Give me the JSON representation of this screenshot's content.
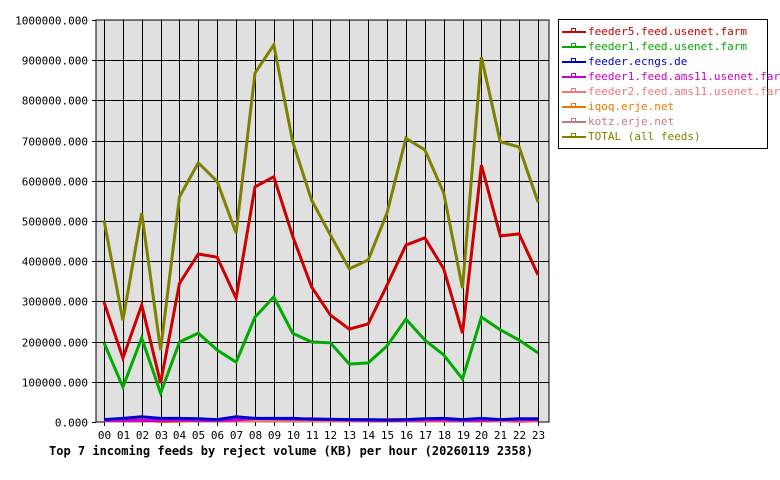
{
  "chart_data": {
    "type": "line",
    "title": "Top 7 incoming feeds by reject volume (KB) per hour (20260119 2358)",
    "xlabel": "",
    "ylabel": "",
    "ylim": [
      0,
      1000000
    ],
    "yticks": [
      "0.000",
      "100000.000",
      "200000.000",
      "300000.000",
      "400000.000",
      "500000.000",
      "600000.000",
      "700000.000",
      "800000.000",
      "900000.000",
      "1000000.000"
    ],
    "grid": true,
    "legend_position": "right",
    "categories": [
      "00",
      "01",
      "02",
      "03",
      "04",
      "05",
      "06",
      "07",
      "08",
      "09",
      "10",
      "11",
      "12",
      "13",
      "14",
      "15",
      "16",
      "17",
      "18",
      "19",
      "20",
      "21",
      "22",
      "23"
    ],
    "series": [
      {
        "name": "feeder5.feed.usenet.farm",
        "color": "#cc0000",
        "values": [
          298000,
          159000,
          291000,
          97000,
          345000,
          418000,
          410000,
          308000,
          585000,
          610000,
          462000,
          336000,
          266000,
          231000,
          244000,
          340000,
          440000,
          458000,
          381000,
          221000,
          639000,
          463000,
          468000,
          366000
        ]
      },
      {
        "name": "feeder1.feed.usenet.farm",
        "color": "#00aa00",
        "values": [
          197000,
          87000,
          209000,
          72000,
          199000,
          221000,
          179000,
          149000,
          261000,
          311000,
          221000,
          199000,
          197000,
          144000,
          147000,
          189000,
          256000,
          204000,
          167000,
          107000,
          261000,
          229000,
          204000,
          172000
        ]
      },
      {
        "name": "feeder.ecngs.de",
        "color": "#0000cc",
        "values": [
          6000,
          9000,
          13000,
          9000,
          9000,
          8000,
          6000,
          13000,
          9000,
          9000,
          9000,
          7000,
          7000,
          6000,
          6000,
          5000,
          6000,
          8000,
          9000,
          6000,
          9000,
          6000,
          8000,
          8000
        ]
      },
      {
        "name": "feeder1.feed.ams11.usenet.farm",
        "color": "#cc00cc",
        "values": [
          4000,
          4000,
          4000,
          3000,
          4000,
          4000,
          4000,
          5000,
          9000,
          8000,
          7000,
          8000,
          6000,
          5000,
          4000,
          4000,
          4000,
          5000,
          5000,
          4000,
          4000,
          6000,
          5000,
          6000
        ]
      },
      {
        "name": "feeder2.feed.ams11.usenet.farm",
        "color": "#ee7777",
        "values": [
          3000,
          3000,
          3000,
          3000,
          3000,
          3000,
          3000,
          3000,
          3000,
          3000,
          3000,
          3000,
          3000,
          3000,
          3000,
          3000,
          3000,
          3000,
          3000,
          3000,
          3000,
          3000,
          1000,
          3000
        ]
      },
      {
        "name": "iqoq.erje.net",
        "color": "#ee7700",
        "values": [
          3000,
          4000,
          5000,
          1000,
          2000,
          3000,
          4000,
          3000,
          3000,
          3000,
          3000,
          3000,
          3000,
          3000,
          3000,
          6000,
          6000,
          3000,
          3000,
          6000,
          3000,
          3000,
          3000,
          3000
        ]
      },
      {
        "name": "kotz.erje.net",
        "color": "#cc7777",
        "values": [
          3000,
          3000,
          3000,
          3000,
          3000,
          3000,
          3000,
          3000,
          3000,
          3000,
          3000,
          3000,
          3000,
          3000,
          3000,
          3000,
          3000,
          3000,
          3000,
          3000,
          3000,
          3000,
          3000,
          3000
        ]
      },
      {
        "name": "TOTAL (all feeds)",
        "color": "#808000",
        "values": [
          502000,
          253000,
          520000,
          179000,
          560000,
          645000,
          598000,
          470000,
          868000,
          938000,
          697000,
          552000,
          465000,
          381000,
          403000,
          520000,
          706000,
          677000,
          570000,
          333000,
          908000,
          697000,
          684000,
          547000
        ]
      }
    ]
  }
}
